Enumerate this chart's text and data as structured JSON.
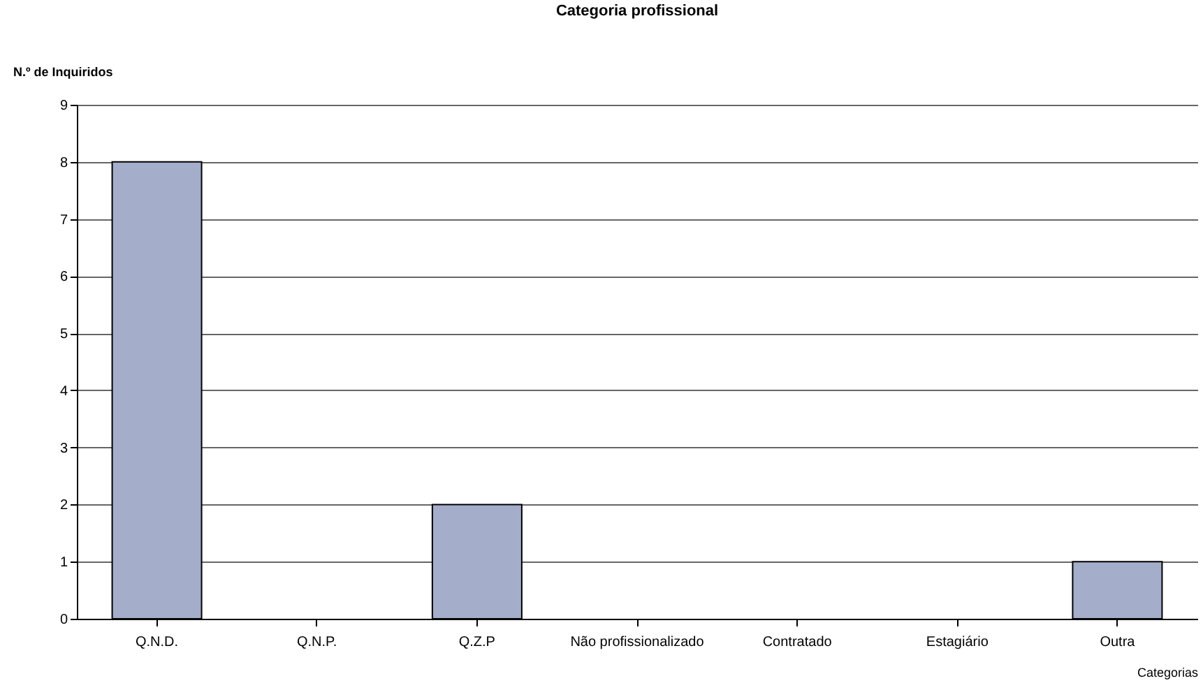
{
  "chart_data": {
    "type": "bar",
    "title": "Categoria profissional",
    "xlabel": "Categorias",
    "ylabel": "N.º de Inquiridos",
    "categories": [
      "Q.N.D.",
      "Q.N.P.",
      "Q.Z.P",
      "Não profissionalizado",
      "Contratado",
      "Estagiário",
      "Outra"
    ],
    "values": [
      8,
      0,
      2,
      0,
      0,
      0,
      1
    ],
    "color": "#a4aecb",
    "ylim": [
      0,
      9
    ],
    "yticks": [
      0,
      1,
      2,
      3,
      4,
      5,
      6,
      7,
      8,
      9
    ],
    "grid": "y"
  }
}
